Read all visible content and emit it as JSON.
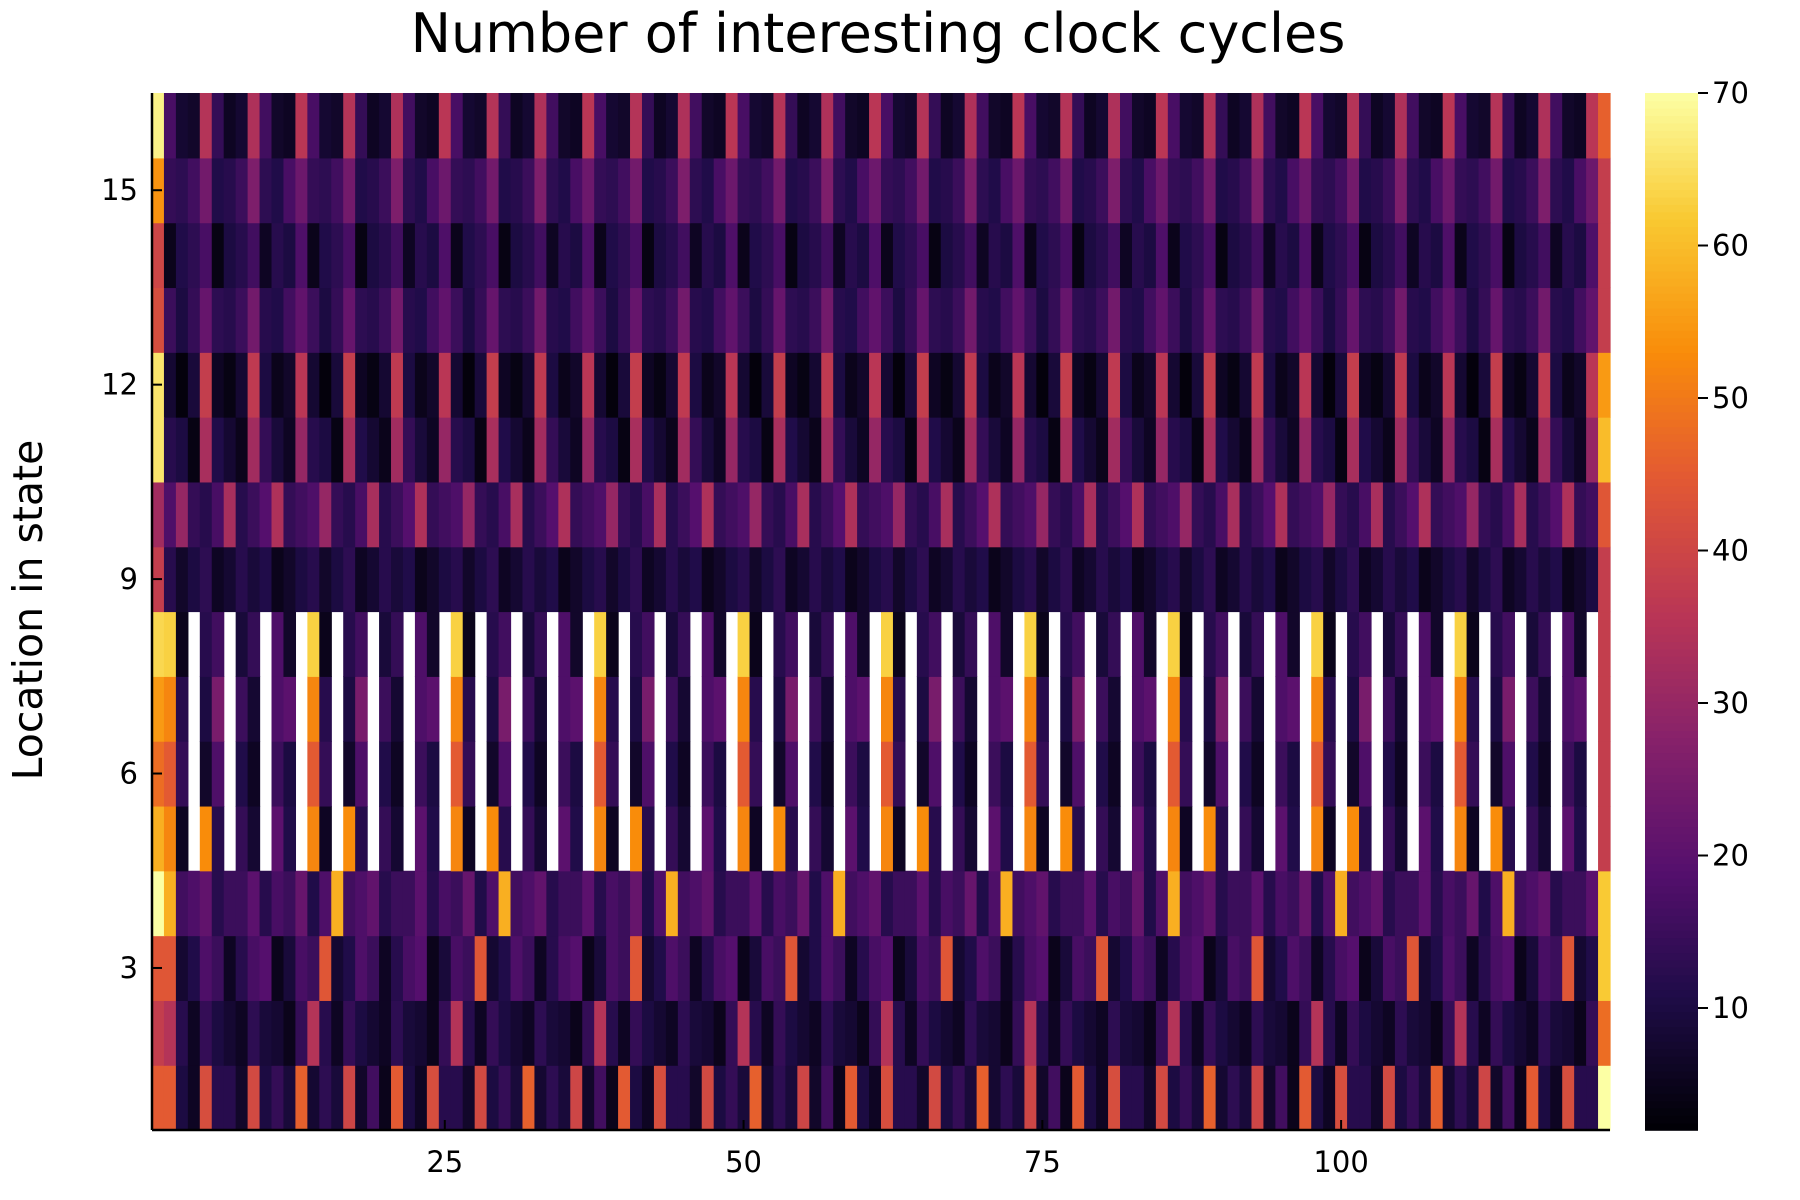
{
  "chart_data": {
    "type": "heatmap",
    "title": "Number of interesting clock cycles",
    "xlabel": "",
    "ylabel": "Location in state",
    "x_ticks": [
      "25",
      "50",
      "75",
      "100"
    ],
    "y_ticks": [
      "3",
      "6",
      "9",
      "12",
      "15"
    ],
    "colorbar_ticks": [
      "10",
      "20",
      "30",
      "40",
      "50",
      "60",
      "70"
    ],
    "colorbar_range": [
      2,
      70
    ],
    "colormap": "inferno",
    "xlim": [
      0.5,
      122.5
    ],
    "ylim": [
      0.5,
      16.5
    ],
    "n_columns": 122,
    "missing_cells": "Rows 5-8 have blank (white) cells at columns 4, 7, 10, ..., 121 (every third column from 4).",
    "rows": {
      "1": {
        "first": 45,
        "last": 70,
        "period": [
          45,
          10,
          6,
          42,
          12,
          12,
          7,
          41,
          10,
          14,
          9,
          46,
          8,
          13,
          9,
          40,
          7,
          16,
          5
        ]
      },
      "2": {
        "first": 38,
        "last": 48,
        "period": [
          35,
          12,
          6,
          14,
          10,
          8,
          6,
          13,
          9,
          8,
          5,
          14
        ]
      },
      "3": {
        "first": 44,
        "last": 62,
        "period": [
          44,
          8,
          11,
          18,
          15,
          6,
          12,
          17,
          19,
          5,
          9,
          17,
          15
        ]
      },
      "4": {
        "first": 70,
        "last": 62,
        "period": [
          58,
          16,
          18,
          21,
          12,
          15,
          15,
          20,
          12,
          17,
          15,
          22,
          11,
          18
        ]
      },
      "5": {
        "first": 58,
        "last": 38,
        "period": [
          52,
          6,
          null,
          53,
          12,
          null,
          14,
          8,
          null,
          20,
          11,
          null
        ]
      },
      "6": {
        "first": 48,
        "last": 38,
        "period": [
          45,
          14,
          null,
          7,
          18,
          null,
          11,
          6,
          null,
          15,
          10,
          null
        ]
      },
      "7": {
        "first": 55,
        "last": 38,
        "period": [
          52,
          12,
          null,
          10,
          25,
          null,
          15,
          8,
          null,
          18,
          20,
          null
        ]
      },
      "8": {
        "first": 64,
        "last": 38,
        "period": [
          63,
          5,
          null,
          12,
          16,
          null,
          9,
          14,
          null,
          18,
          7,
          null
        ]
      },
      "9": {
        "first": 38,
        "last": 38,
        "period": [
          12,
          7,
          10,
          13,
          6,
          8,
          12,
          9,
          11,
          5,
          7,
          10
        ]
      },
      "10": {
        "first": 32,
        "last": 44,
        "period": [
          18,
          30,
          14,
          12,
          17,
          33,
          12,
          15,
          19,
          34,
          14,
          16
        ]
      },
      "11": {
        "first": 66,
        "last": 60,
        "period": [
          12,
          10,
          4,
          33,
          11,
          8,
          5,
          32,
          14,
          9,
          6,
          30
        ]
      },
      "12": {
        "first": 66,
        "last": 55,
        "period": [
          8,
          3,
          9,
          38,
          6,
          4,
          8,
          37,
          10,
          5,
          7,
          36
        ]
      },
      "13": {
        "first": 42,
        "last": 38,
        "period": [
          15,
          10,
          14,
          22,
          13,
          12,
          15,
          24,
          12,
          11,
          16,
          21
        ]
      },
      "14": {
        "first": 40,
        "last": 38,
        "period": [
          5,
          11,
          13,
          17,
          4,
          10,
          12,
          16,
          6,
          12,
          10,
          18
        ]
      },
      "15": {
        "first": 54,
        "last": 38,
        "period": [
          14,
          13,
          16,
          24,
          11,
          12,
          15,
          26,
          13,
          11,
          17,
          23
        ]
      },
      "16": {
        "first": 68,
        "last": 46,
        "period": [
          17,
          8,
          7,
          35,
          14,
          6,
          8,
          34,
          16,
          7,
          6,
          36
        ]
      }
    }
  }
}
